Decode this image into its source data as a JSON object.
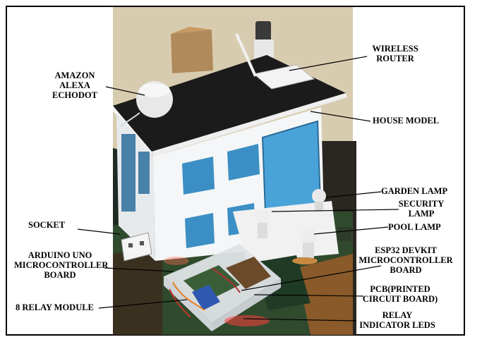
{
  "labels": {
    "alexa": [
      "AMAZON",
      "ALEXA",
      "ECHODOT"
    ],
    "router": [
      "WIRELESS",
      "ROUTER"
    ],
    "house": "HOUSE MODEL",
    "garden": "GARDEN LAMP",
    "security": [
      "SECURITY",
      "LAMP"
    ],
    "pool": "POOL LAMP",
    "socket": "SOCKET",
    "arduino": [
      "ARDUINO UNO",
      "MICROCONTROLLER",
      "BOARD"
    ],
    "esp32": [
      "ESP32 DEVKIT",
      "MICROCONTROLLER",
      "BOARD"
    ],
    "pcb": [
      "PCB(PRINTED",
      "CIRCUIT BOARD)"
    ],
    "relay_module": "8 RELAY MODULE",
    "relay_leds": [
      "RELAY",
      "INDICATOR LEDS"
    ]
  }
}
